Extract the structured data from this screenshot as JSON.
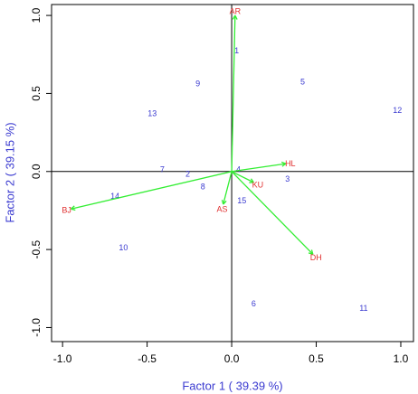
{
  "chart_data": {
    "type": "biplot",
    "xlabel": "Factor 1 ( 39.39 %)",
    "ylabel": "Factor 2 ( 39.15 %)",
    "xlim": [
      -1.065,
      1.075
    ],
    "ylim": [
      -1.09,
      1.07
    ],
    "xticks": [
      {
        "value": -1,
        "label": "-1.0"
      },
      {
        "value": -0.5,
        "label": "-0.5"
      },
      {
        "value": 0,
        "label": "0.0"
      },
      0.5,
      {
        "value": 1,
        "label": "1.0"
      }
    ],
    "yticks": [
      {
        "value": -1,
        "label": "-1.0"
      },
      {
        "value": -0.5,
        "label": "-0.5"
      },
      {
        "value": 0,
        "label": "0.0"
      },
      0.5,
      {
        "value": 1,
        "label": "1.0"
      }
    ],
    "points": {
      "color": "#3a3ad0",
      "labels": [
        "1",
        "9",
        "5",
        "12",
        "13",
        "7",
        "2",
        "4",
        "3",
        "8",
        "14",
        "15",
        "10",
        "6",
        "11"
      ],
      "x": [
        0.03,
        -0.2,
        0.42,
        0.98,
        -0.47,
        -0.41,
        -0.26,
        0.04,
        0.33,
        -0.17,
        -0.69,
        0.06,
        -0.64,
        0.13,
        0.78
      ],
      "y": [
        0.77,
        0.56,
        0.57,
        0.39,
        0.37,
        0.01,
        -0.02,
        0.01,
        -0.05,
        -0.1,
        -0.16,
        -0.19,
        -0.49,
        -0.85,
        -0.88
      ]
    },
    "vectors": {
      "color": "#33ee33",
      "label_color": "#e03030",
      "labels": [
        "AR",
        "HL",
        "KU",
        "AS",
        "BJ",
        "DH"
      ],
      "x": [
        0.02,
        0.32,
        0.13,
        -0.05,
        -0.95,
        0.48
      ],
      "y": [
        1.0,
        0.05,
        -0.07,
        -0.21,
        -0.24,
        -0.53
      ]
    }
  }
}
